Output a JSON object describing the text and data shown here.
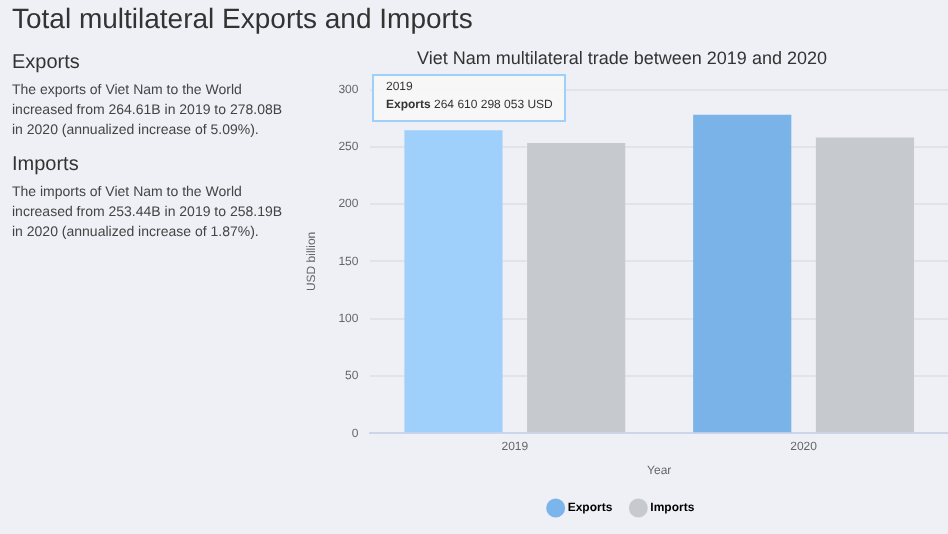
{
  "chart_data": {
    "type": "bar",
    "title": "Viet Nam multilateral trade between 2019 and 2020",
    "xlabel": "Year",
    "ylabel": "USD billion",
    "categories": [
      "2019",
      "2020"
    ],
    "series": [
      {
        "name": "Exports",
        "color": "#7cb5ec",
        "colors": [
          "#9fd0fb",
          "#7ab3e8"
        ],
        "values": [
          264.61,
          278.08
        ]
      },
      {
        "name": "Imports",
        "color": "#c6c9ce",
        "values": [
          253.44,
          258.19
        ]
      }
    ],
    "ylim": [
      0,
      300
    ],
    "yticks": [
      0,
      50,
      100,
      150,
      200,
      250,
      300
    ],
    "grid": "y",
    "legend": "bottom",
    "annotations": [
      "Total multilateral Exports and Imports",
      "Exports",
      "The exports of Viet Nam to the World increased from 264.61B in 2019 to 278.08B in 2020 (annualized increase of 5.09%).",
      "Imports",
      "The imports of Viet Nam to the World increased from 253.44B in 2019 to 258.19B in 2020 (annualized increase of 1.87%).",
      "2019\nExports 264 610 298 053 USD"
    ]
  }
}
